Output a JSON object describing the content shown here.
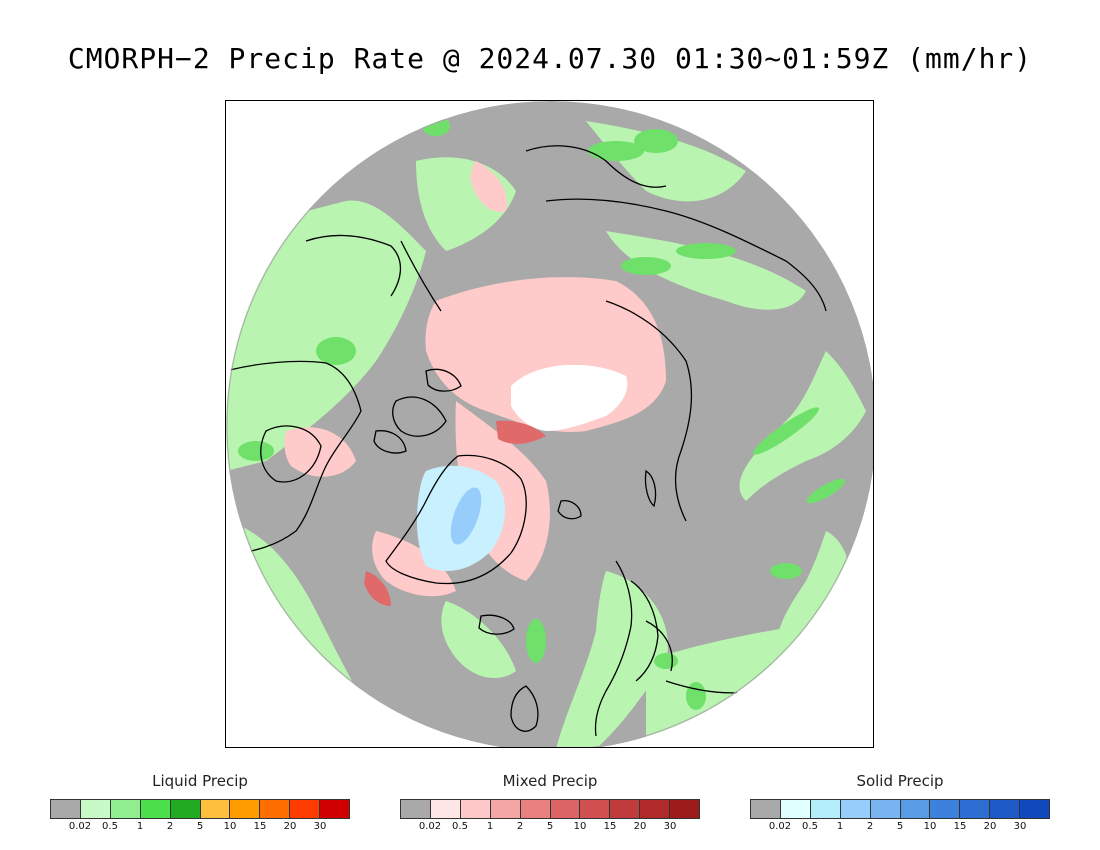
{
  "title": "CMORPH−2 Precip Rate @ 2024.07.30 01:30~01:59Z (mm/hr)",
  "map": {
    "projection": "north polar stereographic",
    "ocean_color": "#a9a9a9",
    "coastline_color": "#000000"
  },
  "legends": [
    {
      "id": "liquid",
      "title": "Liquid Precip",
      "colors": [
        "#a9a9a9",
        "#c8fac8",
        "#90ee90",
        "#4ce04c",
        "#22aa22",
        "#ffc040",
        "#ff9c00",
        "#ff6e00",
        "#ff3c00",
        "#d00000"
      ],
      "tick_labels": [
        "0.02",
        "0.5",
        "1",
        "2",
        "5",
        "10",
        "15",
        "20",
        "30"
      ]
    },
    {
      "id": "mixed",
      "title": "Mixed Precip",
      "colors": [
        "#a9a9a9",
        "#ffe6e6",
        "#ffc8c8",
        "#f4a6a6",
        "#e88080",
        "#dc6464",
        "#d05050",
        "#c03c3c",
        "#b02a2a",
        "#9c1c1c"
      ],
      "tick_labels": [
        "0.02",
        "0.5",
        "1",
        "2",
        "5",
        "10",
        "15",
        "20",
        "30"
      ]
    },
    {
      "id": "solid",
      "title": "Solid Precip",
      "colors": [
        "#a9a9a9",
        "#e0ffff",
        "#b4eefa",
        "#96cdfa",
        "#78b4f0",
        "#5a9be6",
        "#3c82dc",
        "#2c6ed2",
        "#1e5ac8",
        "#1048be"
      ],
      "tick_labels": [
        "0.02",
        "0.5",
        "1",
        "2",
        "5",
        "10",
        "15",
        "20",
        "30"
      ]
    }
  ]
}
